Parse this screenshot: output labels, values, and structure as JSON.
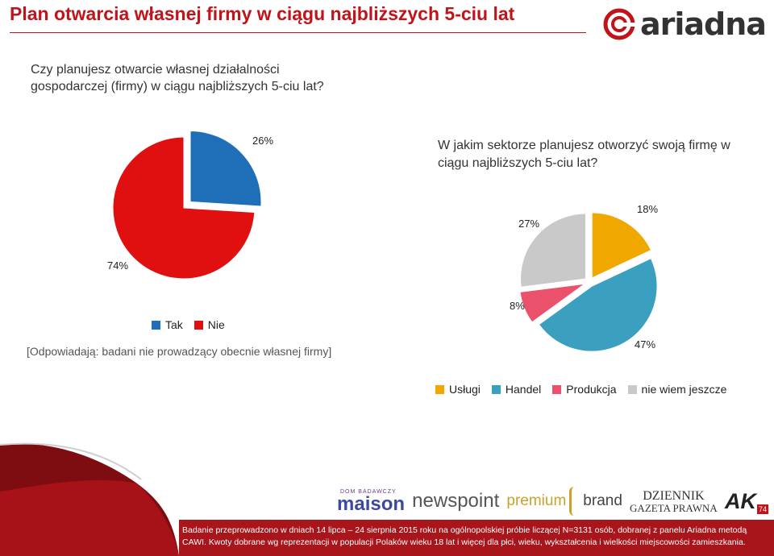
{
  "title": "Plan otwarcia własnej firmy w ciągu najbliższych 5-ciu lat",
  "brand": "ariadna",
  "question1": "Czy planujesz otwarcie własnej działalności gospodarczej (firmy) w ciągu najbliższych 5-ciu lat?",
  "question2": "W jakim sektorze planujesz otworzyć swoją firmę w ciągu najbliższych 5-ciu lat?",
  "note": "[Odpowiadają: badani nie prowadzący obecnie własnej firmy]",
  "partners": {
    "maison_top": "DOM BADAWCZY",
    "maison": "maison",
    "newspoint": "newspoint",
    "premium": "premium",
    "brand": "brand",
    "dgp_line1": "DZIENNIK",
    "dgp_line2": "GAZETA PRAWNA",
    "ak": "AK",
    "ak_badge": "74"
  },
  "footer": "Badanie przeprowadzono w dniach 14 lipca – 24 sierpnia 2015 roku na ogólnopolskiej próbie liczącej N=3131 osób, dobranej z panelu Ariadna metodą CAWI. Kwoty dobrane wg reprezentacji w populacji Polaków wieku 18 lat i więcej dla płci, wieku, wykształcenia i wielkości miejscowości zamieszkania.",
  "colors": {
    "accent": "#c0141b",
    "tak": "#1f6fb8",
    "nie": "#e01010",
    "uslugi": "#f0a800",
    "handel": "#3b9fc0",
    "produkcja": "#e9526a",
    "nie_wiem": "#c9c9c9"
  },
  "chart_data": [
    {
      "type": "pie",
      "title": "",
      "slices": [
        {
          "name": "Tak",
          "value": 26,
          "label": "26%"
        },
        {
          "name": "Nie",
          "value": 74,
          "label": "74%"
        }
      ],
      "legend": [
        "Tak",
        "Nie"
      ],
      "legend_position": "bottom",
      "exploded": "Tak"
    },
    {
      "type": "pie",
      "title": "",
      "slices": [
        {
          "name": "Usługi",
          "value": 18,
          "label": "18%"
        },
        {
          "name": "Handel",
          "value": 47,
          "label": "47%"
        },
        {
          "name": "Produkcja",
          "value": 8,
          "label": "8%"
        },
        {
          "name": "nie wiem jeszcze",
          "value": 27,
          "label": "27%"
        }
      ],
      "legend": [
        "Usługi",
        "Handel",
        "Produkcja",
        "nie wiem jeszcze"
      ],
      "legend_position": "bottom",
      "exploded": "all"
    }
  ]
}
